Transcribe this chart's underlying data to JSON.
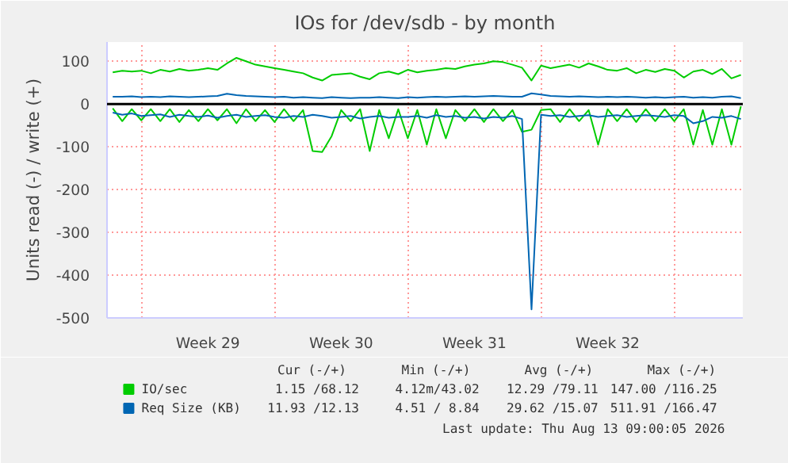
{
  "chart_data": {
    "type": "line",
    "title": "IOs for /dev/sdb - by month",
    "ylabel": "Units read (-) / write (+)",
    "categories": [
      null,
      null,
      null,
      null,
      null,
      null,
      null,
      null,
      null,
      null,
      "Week 29",
      null,
      null,
      null,
      null,
      null,
      null,
      null,
      null,
      null,
      null,
      null,
      null,
      null,
      "Week 30",
      null,
      null,
      null,
      null,
      null,
      null,
      null,
      null,
      null,
      null,
      null,
      null,
      null,
      "Week 31",
      null,
      null,
      null,
      null,
      null,
      null,
      null,
      null,
      null,
      null,
      null,
      null,
      null,
      "Week 32",
      null,
      null,
      null,
      null,
      null,
      null,
      null,
      null,
      null,
      null,
      null,
      null,
      null,
      null
    ],
    "ylim": [
      -500,
      145
    ],
    "yticks": [
      -500,
      -400,
      -300,
      -200,
      -100,
      0,
      100
    ],
    "grid": true,
    "legend": "bottom",
    "series": [
      {
        "name": "IO/sec",
        "color": "#00cc00",
        "values": [
          74,
          78,
          76,
          78,
          72,
          80,
          76,
          82,
          78,
          80,
          84,
          80,
          95,
          108,
          100,
          92,
          88,
          84,
          80,
          76,
          72,
          62,
          55,
          68,
          70,
          72,
          64,
          58,
          72,
          76,
          70,
          80,
          74,
          78,
          80,
          84,
          82,
          88,
          92,
          95,
          100,
          98,
          92,
          85,
          55,
          90,
          84,
          88,
          92,
          85,
          95,
          88,
          80,
          78,
          84,
          72,
          80,
          75,
          82,
          78,
          62,
          76,
          80,
          70,
          82,
          60,
          68
        ]
      },
      {
        "color": "#00cc00",
        "values": [
          -10,
          -40,
          -12,
          -38,
          -12,
          -40,
          -12,
          -42,
          -14,
          -40,
          -12,
          -38,
          -12,
          -45,
          -12,
          -40,
          -14,
          -42,
          -12,
          -40,
          -14,
          -110,
          -112,
          -75,
          -14,
          -40,
          -12,
          -110,
          -14,
          -80,
          -12,
          -80,
          -14,
          -95,
          -12,
          -80,
          -14,
          -40,
          -12,
          -42,
          -12,
          -40,
          -14,
          -65,
          -60,
          -14,
          -12,
          -42,
          -12,
          -40,
          -14,
          -95,
          -12,
          -40,
          -12,
          -42,
          -12,
          -40,
          -12,
          -40,
          -12,
          -95,
          -14,
          -95,
          -12,
          -95,
          -5
        ]
      },
      {
        "name": "Req Size (KB)",
        "color": "#0066b3",
        "values": [
          17,
          17,
          18,
          16,
          17,
          16,
          18,
          17,
          16,
          17,
          18,
          19,
          24,
          21,
          19,
          18,
          17,
          16,
          17,
          15,
          16,
          15,
          14,
          16,
          15,
          14,
          15,
          15,
          16,
          15,
          14,
          16,
          15,
          16,
          17,
          16,
          17,
          18,
          17,
          18,
          19,
          18,
          17,
          17,
          25,
          22,
          19,
          18,
          17,
          18,
          17,
          16,
          17,
          16,
          17,
          16,
          15,
          16,
          15,
          16,
          17,
          15,
          16,
          15,
          17,
          18,
          14
        ]
      },
      {
        "color": "#0066b3",
        "values": [
          -20,
          -25,
          -22,
          -28,
          -26,
          -24,
          -30,
          -25,
          -28,
          -30,
          -27,
          -32,
          -28,
          -25,
          -30,
          -28,
          -26,
          -30,
          -32,
          -28,
          -30,
          -25,
          -28,
          -32,
          -30,
          -28,
          -34,
          -30,
          -28,
          -32,
          -30,
          -30,
          -28,
          -32,
          -26,
          -30,
          -28,
          -32,
          -30,
          -34,
          -30,
          -32,
          -28,
          -35,
          -480,
          -25,
          -28,
          -26,
          -30,
          -28,
          -26,
          -30,
          -28,
          -26,
          -30,
          -28,
          -26,
          -28,
          -30,
          -26,
          -28,
          -45,
          -40,
          -30,
          -32,
          -28,
          -35
        ]
      }
    ],
    "ref_lines": [
      {
        "axis": "y",
        "value": 0,
        "color": "#000000"
      }
    ],
    "annotations": [
      "Cur (-/+)",
      "Min (-/+)",
      "Avg (-/+)",
      "Max (-/+)",
      "1.15 /68.12",
      "4.12m/43.02",
      "12.29 /79.11",
      "147.00 /116.25",
      "11.93 /12.13",
      "4.51 / 8.84",
      "29.62 /15.07",
      "511.91 /166.47",
      "Last update: Thu Aug 13 09:00:05 2026"
    ]
  }
}
